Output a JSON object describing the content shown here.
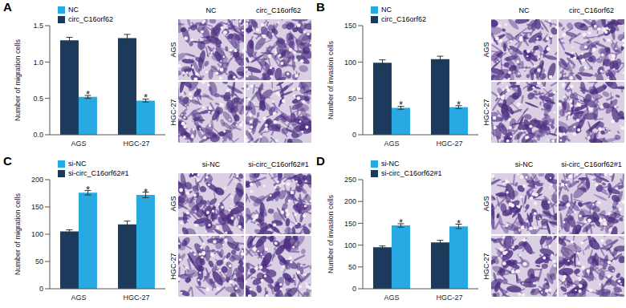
{
  "chart_data": [
    {
      "panel_label": "A",
      "type": "bar",
      "ylabel": "Number of migration cells",
      "categories": [
        "AGS",
        "HGC-27"
      ],
      "ylim": [
        0,
        1.5
      ],
      "yticks": [
        {
          "value": 0,
          "label": "0.0"
        },
        {
          "value": 0.5,
          "label": "0.5"
        },
        {
          "value": 1,
          "label": "1.0"
        },
        {
          "value": 1.5,
          "label": "1.5"
        }
      ],
      "series": [
        {
          "name": "NC",
          "color": "#29a9e1",
          "values": [
            0.52,
            0.47
          ],
          "errors": [
            0.02,
            0.02
          ]
        },
        {
          "name": "circ_C16orf62",
          "color": "#1b3a5c",
          "values": [
            1.3,
            1.33
          ],
          "errors": [
            0.04,
            0.05
          ]
        }
      ],
      "annotations": [
        {
          "series": "NC",
          "category": "AGS",
          "text": "*"
        },
        {
          "series": "NC",
          "category": "HGC-27",
          "text": "*"
        }
      ],
      "legend": "upper left",
      "micrograph_columns": [
        "NC",
        "circ_C16orf62"
      ],
      "micrograph_rows": [
        "AGS",
        "HGC-27"
      ]
    },
    {
      "panel_label": "B",
      "type": "bar",
      "ylabel": "Number of invasion cells",
      "categories": [
        "AGS",
        "HGC-27"
      ],
      "ylim": [
        0,
        150
      ],
      "yticks": [
        0,
        50,
        100,
        150
      ],
      "series": [
        {
          "name": "NC",
          "color": "#29a9e1",
          "values": [
            37,
            38
          ],
          "errors": [
            2,
            2
          ]
        },
        {
          "name": "circ_C16orf62",
          "color": "#1b3a5c",
          "values": [
            99,
            104
          ],
          "errors": [
            4,
            4
          ]
        }
      ],
      "annotations": [
        {
          "series": "NC",
          "category": "AGS",
          "text": "*"
        },
        {
          "series": "NC",
          "category": "HGC-27",
          "text": "*"
        }
      ],
      "legend": "upper left",
      "micrograph_columns": [
        "NC",
        "circ_C16orf62"
      ],
      "micrograph_rows": [
        "AGS",
        "HGC-27"
      ]
    },
    {
      "panel_label": "C",
      "type": "bar",
      "ylabel": "Number of migration cells",
      "categories": [
        "AGS",
        "HGC-27"
      ],
      "ylim": [
        0,
        200
      ],
      "yticks": [
        0,
        50,
        100,
        150,
        200
      ],
      "series": [
        {
          "name": "si-NC",
          "color": "#29a9e1",
          "values": [
            176,
            172
          ],
          "errors": [
            4,
            5
          ]
        },
        {
          "name": "si-circ_C16orf62#1",
          "color": "#1b3a5c",
          "values": [
            105,
            118
          ],
          "errors": [
            3,
            6
          ]
        }
      ],
      "annotations": [
        {
          "series": "si-NC",
          "category": "AGS",
          "text": "*"
        },
        {
          "series": "si-NC",
          "category": "HGC-27",
          "text": "*"
        }
      ],
      "legend": "upper left",
      "micrograph_columns": [
        "si-NC",
        "si-circ_C16orf62#1"
      ],
      "micrograph_rows": [
        "AGS",
        "HGC-27"
      ]
    },
    {
      "panel_label": "D",
      "type": "bar",
      "ylabel": "Number of invasion cells",
      "categories": [
        "AGS",
        "HGC-27"
      ],
      "ylim": [
        0,
        250
      ],
      "yticks": [
        0,
        50,
        100,
        150,
        200,
        250
      ],
      "series": [
        {
          "name": "si-NC",
          "color": "#29a9e1",
          "values": [
            145,
            143
          ],
          "errors": [
            4,
            5
          ]
        },
        {
          "name": "si-circ_C16orf62#1",
          "color": "#1b3a5c",
          "values": [
            95,
            106
          ],
          "errors": [
            3,
            5
          ]
        }
      ],
      "annotations": [
        {
          "series": "si-NC",
          "category": "AGS",
          "text": "*"
        },
        {
          "series": "si-NC",
          "category": "HGC-27",
          "text": "*"
        }
      ],
      "legend": "upper left",
      "micrograph_columns": [
        "si-NC",
        "si-circ_C16orf62#1"
      ],
      "micrograph_rows": [
        "AGS",
        "HGC-27"
      ]
    }
  ]
}
